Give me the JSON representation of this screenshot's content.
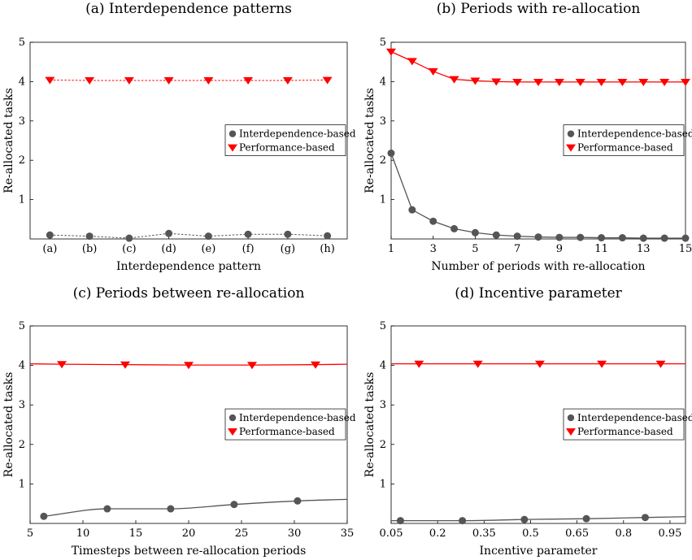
{
  "colors": {
    "interdependence": "#555555",
    "performance": "#ff0000"
  },
  "chart_data": [
    {
      "type": "line",
      "title": "(a) Interdependence patterns",
      "xlabel": "Interdependence pattern",
      "ylabel": "Re-allocated tasks",
      "x_scale": "category",
      "categories": [
        "(a)",
        "(b)",
        "(c)",
        "(d)",
        "(e)",
        "(f)",
        "(g)",
        "(h)"
      ],
      "ylim": [
        0,
        5
      ],
      "yticks": [
        1,
        2,
        3,
        4,
        5
      ],
      "ytick_labels": [
        "1",
        "2",
        "3",
        "4",
        "5"
      ],
      "legend": "middle-right",
      "series": [
        {
          "name": "Interdependence-based",
          "marker": "circle",
          "line": "dashed",
          "values": [
            0.1,
            0.07,
            0.02,
            0.14,
            0.07,
            0.12,
            0.12,
            0.08
          ]
        },
        {
          "name": "Performance-based",
          "marker": "triangle-down",
          "line": "dashed",
          "values": [
            4.04,
            4.03,
            4.03,
            4.03,
            4.03,
            4.03,
            4.03,
            4.04
          ]
        }
      ]
    },
    {
      "type": "line",
      "title": "(b) Periods with re-allocation",
      "xlabel": "Number of periods with re-allocation",
      "ylabel": "Re-allocated tasks",
      "x_scale": "linear",
      "xlim": [
        1,
        15
      ],
      "xticks": [
        1,
        3,
        5,
        7,
        9,
        11,
        13,
        15
      ],
      "xtick_labels": [
        "1",
        "3",
        "5",
        "7",
        "9",
        "11",
        "13",
        "15"
      ],
      "ylim": [
        0,
        5
      ],
      "yticks": [
        1,
        2,
        3,
        4,
        5
      ],
      "ytick_labels": [
        "1",
        "2",
        "3",
        "4",
        "5"
      ],
      "legend": "middle-right",
      "series": [
        {
          "name": "Interdependence-based",
          "marker": "circle",
          "line": "solid",
          "x": [
            1,
            2,
            3,
            4,
            5,
            6,
            7,
            8,
            9,
            10,
            11,
            12,
            13,
            14,
            15
          ],
          "values": [
            2.18,
            0.74,
            0.45,
            0.26,
            0.16,
            0.1,
            0.07,
            0.05,
            0.04,
            0.04,
            0.03,
            0.03,
            0.02,
            0.02,
            0.02
          ]
        },
        {
          "name": "Performance-based",
          "marker": "triangle-down",
          "line": "solid",
          "x": [
            1,
            2,
            3,
            4,
            5,
            6,
            7,
            8,
            9,
            10,
            11,
            12,
            13,
            14,
            15
          ],
          "values": [
            4.76,
            4.52,
            4.26,
            4.06,
            4.02,
            4.0,
            3.99,
            3.99,
            3.99,
            3.99,
            3.99,
            3.99,
            3.99,
            3.99,
            3.99
          ]
        }
      ]
    },
    {
      "type": "line",
      "title": "(c) Periods between re-allocation",
      "xlabel": "Timesteps between re-allocation periods",
      "ylabel": "Re-allocated tasks",
      "x_scale": "linear",
      "xlim": [
        5,
        35
      ],
      "xticks": [
        5,
        10,
        15,
        20,
        25,
        30,
        35
      ],
      "xtick_labels": [
        "5",
        "10",
        "15",
        "20",
        "25",
        "30",
        "35"
      ],
      "ylim": [
        0,
        5
      ],
      "yticks": [
        1,
        2,
        3,
        4,
        5
      ],
      "ytick_labels": [
        "1",
        "2",
        "3",
        "4",
        "5"
      ],
      "legend": "middle-right",
      "series": [
        {
          "name": "Interdependence-based",
          "marker": "circle",
          "line": "smooth",
          "x": [
            6.3,
            12.3,
            18.3,
            24.3,
            30.3,
            35
          ],
          "values": [
            0.18,
            0.37,
            0.37,
            0.48,
            0.57,
            0.61
          ],
          "marker_x": [
            6.3,
            12.3,
            18.3,
            24.3,
            30.3
          ]
        },
        {
          "name": "Performance-based",
          "marker": "triangle-down",
          "line": "smooth",
          "x": [
            5,
            8,
            14,
            20,
            26,
            32,
            35
          ],
          "values": [
            4.04,
            4.03,
            4.02,
            4.01,
            4.01,
            4.02,
            4.03
          ],
          "marker_x": [
            8,
            14,
            20,
            26,
            32
          ]
        }
      ]
    },
    {
      "type": "line",
      "title": "(d) Incentive parameter",
      "xlabel": "Incentive parameter",
      "ylabel": "Re-allocated tasks",
      "x_scale": "linear",
      "xlim": [
        0.05,
        1.0
      ],
      "xticks": [
        0.05,
        0.2,
        0.35,
        0.5,
        0.65,
        0.8,
        0.95
      ],
      "xtick_labels": [
        "0.05",
        "0.2",
        "0.35",
        "0.5",
        "0.65",
        "0.8",
        "0.95"
      ],
      "ylim": [
        0,
        5
      ],
      "yticks": [
        1,
        2,
        3,
        4,
        5
      ],
      "ytick_labels": [
        "1",
        "2",
        "3",
        "4",
        "5"
      ],
      "legend": "middle-right",
      "series": [
        {
          "name": "Interdependence-based",
          "marker": "circle",
          "line": "smooth",
          "x": [
            0.05,
            0.08,
            0.28,
            0.48,
            0.68,
            0.87,
            1.0
          ],
          "values": [
            0.07,
            0.07,
            0.07,
            0.1,
            0.12,
            0.15,
            0.17
          ],
          "marker_x": [
            0.08,
            0.28,
            0.48,
            0.68,
            0.87
          ]
        },
        {
          "name": "Performance-based",
          "marker": "triangle-down",
          "line": "smooth",
          "x": [
            0.05,
            0.14,
            0.33,
            0.53,
            0.73,
            0.92,
            1.0
          ],
          "values": [
            4.04,
            4.04,
            4.04,
            4.04,
            4.04,
            4.04,
            4.04
          ],
          "marker_x": [
            0.14,
            0.33,
            0.53,
            0.73,
            0.92
          ]
        }
      ]
    }
  ]
}
